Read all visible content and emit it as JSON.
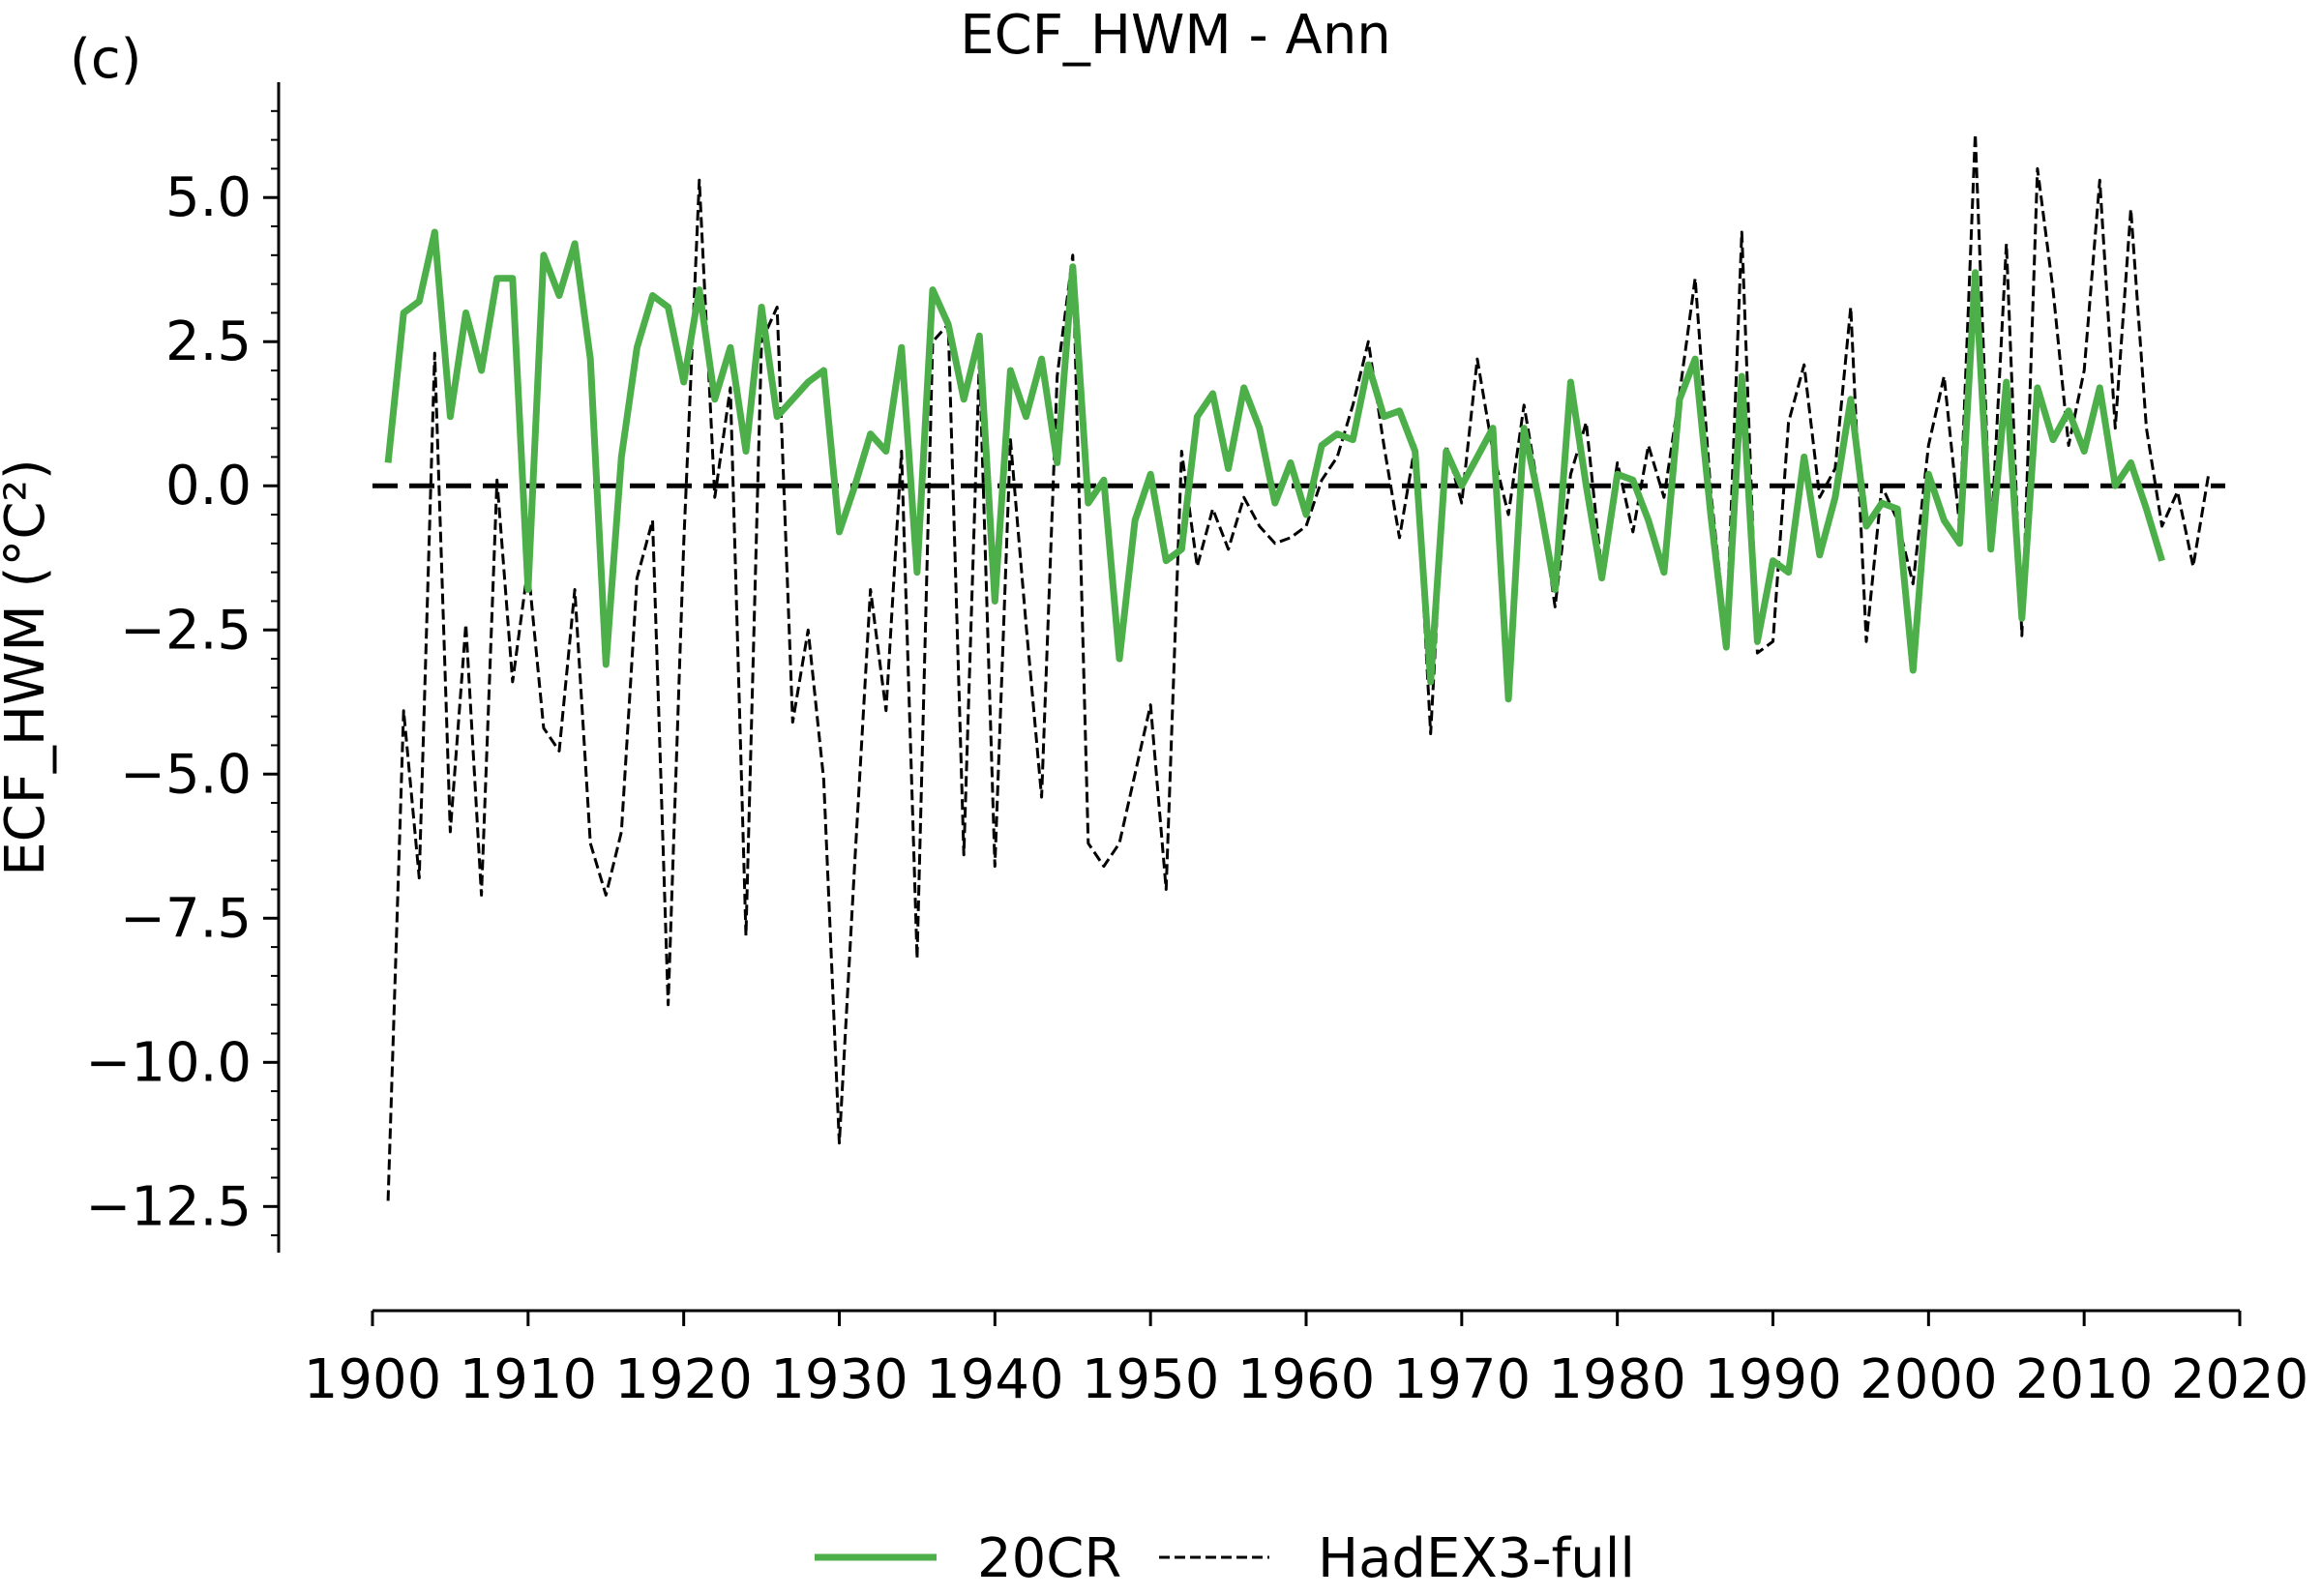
{
  "panel_label": "(c)",
  "chart_data": {
    "type": "line",
    "title": "ECF_HWM - Ann",
    "ylabel": "ECF_HWM (°C²)",
    "xlabel": "",
    "xlim": [
      1900,
      2020
    ],
    "ylim": [
      -13.3,
      7.0
    ],
    "x_ticks": [
      1900,
      1910,
      1920,
      1930,
      1940,
      1950,
      1960,
      1970,
      1980,
      1990,
      2000,
      2010,
      2020
    ],
    "y_ticks": [
      5.0,
      2.5,
      0.0,
      -2.5,
      -5.0,
      -7.5,
      -10.0,
      -12.5
    ],
    "y_tick_labels": [
      "5.0",
      "2.5",
      "0.0",
      "−2.5",
      "−5.0",
      "−7.5",
      "−10.0",
      "−12.5"
    ],
    "reference_line": {
      "y": 0.0,
      "color": "#000000",
      "style": "dashed"
    },
    "grid": false,
    "legend": {
      "placement": "bottom-center",
      "columns": 2
    },
    "series": [
      {
        "name": "20CR",
        "color": "#4daf4a",
        "style": "solid",
        "x": [
          1901,
          1902,
          1903,
          1904,
          1905,
          1906,
          1907,
          1908,
          1909,
          1910,
          1911,
          1912,
          1913,
          1914,
          1915,
          1916,
          1917,
          1918,
          1919,
          1920,
          1921,
          1922,
          1923,
          1924,
          1925,
          1926,
          1927,
          1928,
          1929,
          1930,
          1931,
          1932,
          1933,
          1934,
          1935,
          1936,
          1937,
          1938,
          1939,
          1940,
          1941,
          1942,
          1943,
          1944,
          1945,
          1946,
          1947,
          1948,
          1949,
          1950,
          1951,
          1952,
          1953,
          1954,
          1955,
          1956,
          1957,
          1958,
          1959,
          1960,
          1961,
          1962,
          1963,
          1964,
          1965,
          1966,
          1967,
          1968,
          1969,
          1970,
          1971,
          1972,
          1973,
          1974,
          1975,
          1976,
          1977,
          1978,
          1979,
          1980,
          1981,
          1982,
          1983,
          1984,
          1985,
          1986,
          1987,
          1988,
          1989,
          1990,
          1991,
          1992,
          1993,
          1994,
          1995,
          1996,
          1997,
          1998,
          1999,
          2000,
          2001,
          2002,
          2003,
          2004,
          2005,
          2006,
          2007,
          2008,
          2009,
          2010,
          2011,
          2012,
          2013,
          2014,
          2015
        ],
        "y": [
          0.4,
          3.0,
          3.2,
          4.4,
          1.2,
          3.0,
          2.0,
          3.6,
          3.6,
          -1.8,
          4.0,
          3.3,
          4.2,
          2.2,
          -3.1,
          0.5,
          2.4,
          3.3,
          3.1,
          1.8,
          3.4,
          1.5,
          2.4,
          0.6,
          3.1,
          1.2,
          1.5,
          1.8,
          2.0,
          -0.8,
          0.0,
          0.9,
          0.6,
          2.4,
          -1.5,
          3.4,
          2.8,
          1.5,
          2.6,
          -2.0,
          2.0,
          1.2,
          2.2,
          0.4,
          3.8,
          -0.3,
          0.1,
          -3.0,
          -0.6,
          0.2,
          -1.3,
          -1.1,
          1.2,
          1.6,
          0.3,
          1.7,
          1.0,
          -0.3,
          0.4,
          -0.5,
          0.7,
          0.9,
          0.8,
          2.1,
          1.2,
          1.3,
          0.6,
          -3.4,
          0.6,
          0.0,
          0.5,
          1.0,
          -3.7,
          1.0,
          -0.3,
          -1.8,
          1.8,
          0.0,
          -1.6,
          0.2,
          0.1,
          -0.6,
          -1.5,
          1.5,
          2.2,
          -0.5,
          -2.8,
          1.9,
          -2.7,
          -1.3,
          -1.5,
          0.5,
          -1.2,
          -0.2,
          1.5,
          -0.7,
          -0.3,
          -0.4,
          -3.2,
          0.2,
          -0.6,
          -1.0,
          3.7,
          -1.1,
          1.8,
          -2.3,
          1.7,
          0.8,
          1.3,
          0.6,
          1.7,
          0.0,
          0.4,
          -0.4,
          -1.3
        ]
      },
      {
        "name": "HadEX3-full",
        "color": "#000000",
        "style": "dashed",
        "x": [
          1901,
          1902,
          1903,
          1904,
          1905,
          1906,
          1907,
          1908,
          1909,
          1910,
          1911,
          1912,
          1913,
          1914,
          1915,
          1916,
          1917,
          1918,
          1919,
          1920,
          1921,
          1922,
          1923,
          1924,
          1925,
          1926,
          1927,
          1928,
          1929,
          1930,
          1931,
          1932,
          1933,
          1934,
          1935,
          1936,
          1937,
          1938,
          1939,
          1940,
          1941,
          1942,
          1943,
          1944,
          1945,
          1946,
          1947,
          1948,
          1949,
          1950,
          1951,
          1952,
          1953,
          1954,
          1955,
          1956,
          1957,
          1958,
          1959,
          1960,
          1961,
          1962,
          1963,
          1964,
          1965,
          1966,
          1967,
          1968,
          1969,
          1970,
          1971,
          1972,
          1973,
          1974,
          1975,
          1976,
          1977,
          1978,
          1979,
          1980,
          1981,
          1982,
          1983,
          1984,
          1985,
          1986,
          1987,
          1988,
          1989,
          1990,
          1991,
          1992,
          1993,
          1994,
          1995,
          1996,
          1997,
          1998,
          1999,
          2000,
          2001,
          2002,
          2003,
          2004,
          2005,
          2006,
          2007,
          2008,
          2009,
          2010,
          2011,
          2012,
          2013,
          2014,
          2015,
          2016,
          2017,
          2018
        ],
        "y": [
          -12.4,
          -3.9,
          -6.8,
          2.3,
          -6.0,
          -2.4,
          -7.1,
          0.1,
          -3.4,
          -1.4,
          -4.2,
          -4.6,
          -1.8,
          -6.2,
          -7.1,
          -6.0,
          -1.6,
          -0.6,
          -9.0,
          -1.0,
          5.3,
          -0.2,
          1.7,
          -7.8,
          2.5,
          3.1,
          -4.1,
          -2.5,
          -5.1,
          -11.4,
          -6.5,
          -1.8,
          -3.9,
          0.6,
          -8.2,
          2.5,
          2.8,
          -6.4,
          2.2,
          -6.6,
          0.8,
          -2.4,
          -5.4,
          1.9,
          4.0,
          -6.2,
          -6.6,
          -6.2,
          -5.0,
          -3.8,
          -7.0,
          0.6,
          -1.4,
          -0.4,
          -1.1,
          -0.2,
          -0.7,
          -1.0,
          -0.9,
          -0.7,
          0.1,
          0.5,
          1.4,
          2.5,
          0.7,
          -0.9,
          0.7,
          -4.3,
          0.7,
          -0.3,
          2.2,
          0.6,
          -0.5,
          1.4,
          -0.2,
          -2.1,
          0.2,
          1.1,
          -1.5,
          0.4,
          -0.8,
          0.7,
          -0.2,
          1.6,
          3.6,
          -0.1,
          -2.6,
          4.4,
          -2.9,
          -2.7,
          1.1,
          2.1,
          -0.2,
          0.3,
          3.1,
          -2.7,
          -0.0,
          -0.6,
          -1.7,
          0.7,
          1.9,
          -0.7,
          6.1,
          -1.0,
          4.2,
          -2.6,
          5.5,
          3.4,
          0.7,
          2.0,
          5.3,
          1.0,
          4.8,
          1.0,
          -0.7,
          -0.1,
          -1.4,
          0.2
        ]
      }
    ]
  }
}
